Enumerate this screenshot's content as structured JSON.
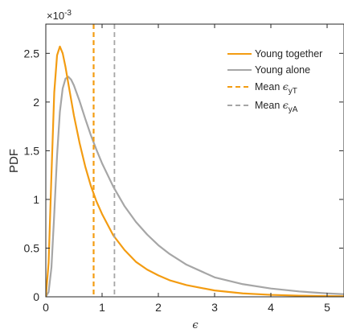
{
  "chart_data": {
    "type": "line",
    "ylabel": "PDF",
    "xlabel": "ϵ",
    "y_exponent_label": "×10",
    "y_exponent_power": "-3",
    "xlim": [
      0,
      5.3
    ],
    "ylim": [
      0,
      2.8
    ],
    "xticks": [
      0,
      1,
      2,
      3,
      4,
      5
    ],
    "yticks": [
      0,
      0.5,
      1,
      1.5,
      2,
      2.5
    ],
    "ytick_labels": [
      "0",
      "0.5",
      "1",
      "1.5",
      "2",
      "2.5"
    ],
    "grid": false,
    "legend_position": "top-right",
    "series": [
      {
        "name": "Young together",
        "color": "#f39c12",
        "style": "solid",
        "x": [
          0,
          0.05,
          0.1,
          0.15,
          0.2,
          0.25,
          0.3,
          0.35,
          0.4,
          0.5,
          0.6,
          0.7,
          0.8,
          0.9,
          1.0,
          1.2,
          1.4,
          1.6,
          1.8,
          2.0,
          2.2,
          2.5,
          3.0,
          3.5,
          4.0,
          4.5,
          5.0,
          5.3
        ],
        "y": [
          0,
          0.35,
          1.25,
          2.1,
          2.48,
          2.57,
          2.5,
          2.36,
          2.19,
          1.86,
          1.58,
          1.34,
          1.14,
          0.98,
          0.85,
          0.63,
          0.48,
          0.36,
          0.28,
          0.22,
          0.17,
          0.12,
          0.065,
          0.035,
          0.02,
          0.012,
          0.007,
          0.005
        ]
      },
      {
        "name": "Young alone",
        "color": "#a6a6a6",
        "style": "solid",
        "x": [
          0,
          0.05,
          0.1,
          0.15,
          0.2,
          0.25,
          0.3,
          0.35,
          0.4,
          0.45,
          0.5,
          0.6,
          0.7,
          0.8,
          0.9,
          1.0,
          1.2,
          1.4,
          1.6,
          1.8,
          2.0,
          2.2,
          2.5,
          3.0,
          3.5,
          4.0,
          4.5,
          5.0,
          5.3
        ],
        "y": [
          0,
          0.05,
          0.3,
          0.85,
          1.45,
          1.9,
          2.14,
          2.24,
          2.26,
          2.23,
          2.17,
          2.01,
          1.83,
          1.66,
          1.51,
          1.37,
          1.13,
          0.93,
          0.77,
          0.64,
          0.53,
          0.44,
          0.33,
          0.2,
          0.13,
          0.085,
          0.055,
          0.035,
          0.027
        ]
      }
    ],
    "vlines": [
      {
        "name": "Mean ϵ",
        "sub": "yT",
        "x": 0.85,
        "color": "#f39c12",
        "style": "dashed"
      },
      {
        "name": "Mean ϵ",
        "sub": "yA",
        "x": 1.22,
        "color": "#a6a6a6",
        "style": "dashed"
      }
    ]
  }
}
